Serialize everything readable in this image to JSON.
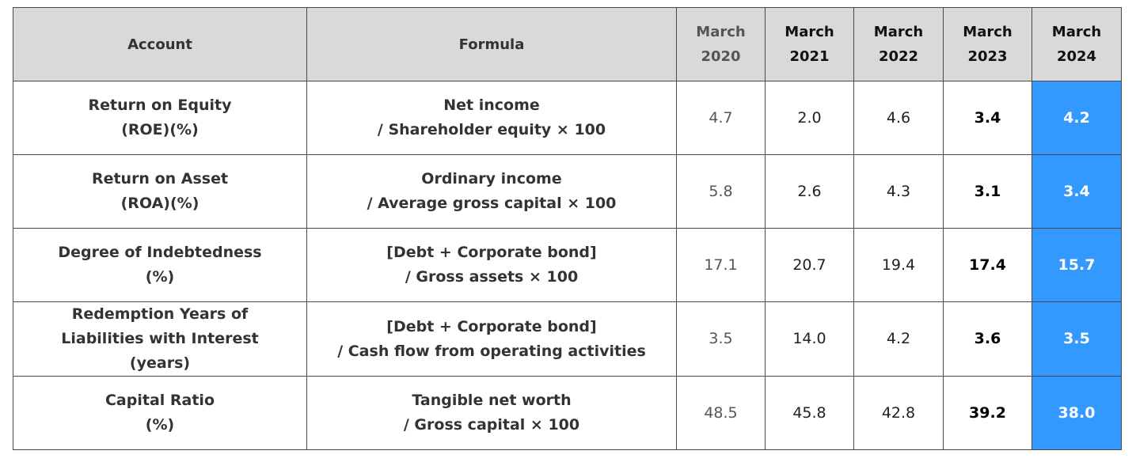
{
  "columns": {
    "account": "Account",
    "formula": "Formula",
    "years": [
      {
        "line1": "March",
        "line2": "2020"
      },
      {
        "line1": "March",
        "line2": "2021"
      },
      {
        "line1": "March",
        "line2": "2022"
      },
      {
        "line1": "March",
        "line2": "2023"
      },
      {
        "line1": "March",
        "line2": "2024"
      }
    ]
  },
  "rows": [
    {
      "account": [
        "Return on Equity",
        "(ROE)(%)"
      ],
      "formula": [
        "Net income",
        "/ Shareholder equity × 100"
      ],
      "values": [
        "4.7",
        "2.0",
        "4.6",
        "3.4",
        "4.2"
      ]
    },
    {
      "account": [
        "Return on Asset",
        "(ROA)(%)"
      ],
      "formula": [
        "Ordinary income",
        "/ Average gross capital × 100"
      ],
      "values": [
        "5.8",
        "2.6",
        "4.3",
        "3.1",
        "3.4"
      ]
    },
    {
      "account": [
        "Degree of Indebtedness",
        "(%)"
      ],
      "formula": [
        "[Debt + Corporate bond]",
        "/ Gross assets × 100"
      ],
      "values": [
        "17.1",
        "20.7",
        "19.4",
        "17.4",
        "15.7"
      ]
    },
    {
      "account": [
        "Redemption Years of",
        "Liabilities with Interest",
        "(years)"
      ],
      "formula": [
        "[Debt + Corporate bond]",
        "/ Cash flow from operating activities"
      ],
      "values": [
        "3.5",
        "14.0",
        "4.2",
        "3.6",
        "3.5"
      ]
    },
    {
      "account": [
        "Capital Ratio",
        "(%)"
      ],
      "formula": [
        "Tangible net worth",
        "/ Gross capital × 100"
      ],
      "values": [
        "48.5",
        "45.8",
        "42.8",
        "39.2",
        "38.0"
      ]
    }
  ],
  "colors": {
    "header_bg": "#d9d9d9",
    "highlight_bg": "#3399ff",
    "highlight_text": "#ffffff",
    "border": "#4a4a4a"
  }
}
